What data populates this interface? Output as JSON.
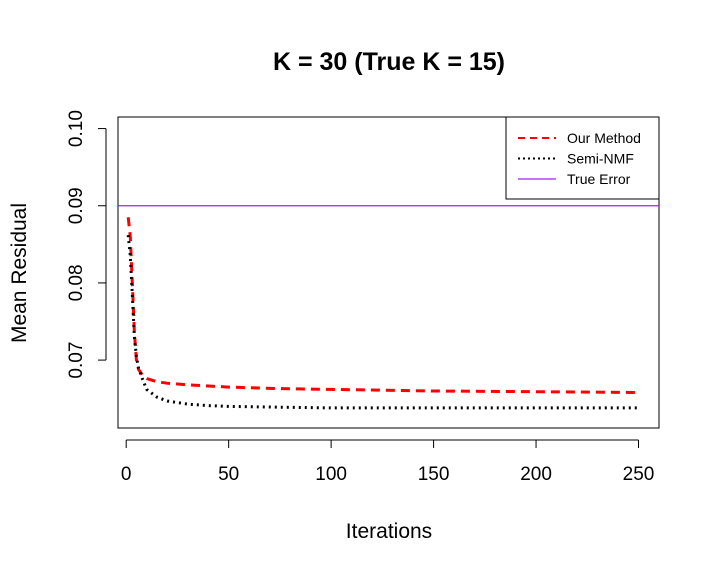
{
  "chart_data": {
    "type": "line",
    "title": "K = 30 (True K = 15)",
    "xlabel": "Iterations",
    "ylabel": "Mean Residual",
    "xlim": [
      -4,
      260
    ],
    "ylim": [
      0.0612,
      0.1015
    ],
    "xticks": [
      0,
      50,
      100,
      150,
      200,
      250
    ],
    "xtick_labels": [
      "0",
      "50",
      "100",
      "150",
      "200",
      "250"
    ],
    "yticks": [
      0.07,
      0.08,
      0.09,
      0.1
    ],
    "ytick_labels": [
      "0.07",
      "0.08",
      "0.09",
      "0.10"
    ],
    "grid": false,
    "legend_position": "top-right",
    "series": [
      {
        "name": "Our Method",
        "color": "#ff0000",
        "style": "dashed",
        "x": [
          1,
          2,
          3,
          4,
          5,
          6,
          8,
          10,
          15,
          20,
          30,
          50,
          75,
          100,
          150,
          200,
          250
        ],
        "y": [
          0.0885,
          0.086,
          0.08,
          0.0735,
          0.07,
          0.0688,
          0.068,
          0.0676,
          0.0672,
          0.067,
          0.0668,
          0.0665,
          0.0663,
          0.0662,
          0.066,
          0.0659,
          0.0658
        ]
      },
      {
        "name": "Semi-NMF",
        "color": "#000000",
        "style": "dotted",
        "x": [
          1,
          2,
          3,
          4,
          5,
          6,
          8,
          10,
          15,
          20,
          30,
          40,
          50,
          75,
          100,
          150,
          200,
          250
        ],
        "y": [
          0.0862,
          0.0835,
          0.0785,
          0.073,
          0.0705,
          0.069,
          0.0675,
          0.0662,
          0.0652,
          0.0647,
          0.0643,
          0.0641,
          0.064,
          0.0639,
          0.0638,
          0.0638,
          0.0638,
          0.0638
        ]
      },
      {
        "name": "True Error",
        "color": "#a020f0",
        "style": "solid",
        "hline": 0.09
      }
    ]
  }
}
